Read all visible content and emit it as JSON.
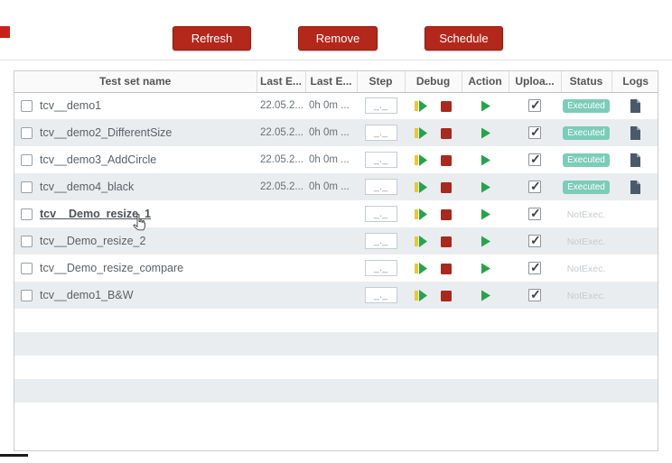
{
  "toolbar": {
    "buttons": [
      {
        "label": "Refresh"
      },
      {
        "label": "Remove"
      },
      {
        "label": "Schedule"
      }
    ]
  },
  "colors": {
    "button_red": "#b4271b",
    "badge_teal": "#7bccb9",
    "play_green": "#28a24c",
    "stop_red": "#a8291e",
    "debug_yellow": "#e5c93c",
    "log_icon_slate": "#4a5a6a",
    "row_stripe": "#e9edf0"
  },
  "icons": [
    "debug-play-icon",
    "stop-icon",
    "play-icon",
    "log-document-icon",
    "checkbox",
    "hand-cursor-icon"
  ],
  "table": {
    "headers": [
      "Test set name",
      "Last E...",
      "Last E...",
      "Step",
      "Debug",
      "Action",
      "Uploa...",
      "Status",
      "Logs"
    ],
    "step_placeholder": "_._",
    "empty_rows": 4,
    "rows": [
      {
        "name": "tcv__demo1",
        "last_exec": "22.05.2...",
        "duration": "0h 0m ...",
        "status": "Executed",
        "executed": true,
        "has_log": true,
        "upload_checked": true,
        "row_checked": false,
        "hover": false
      },
      {
        "name": "tcv__demo2_DifferentSize",
        "last_exec": "22.05.2...",
        "duration": "0h 0m ...",
        "status": "Executed",
        "executed": true,
        "has_log": true,
        "upload_checked": true,
        "row_checked": false,
        "hover": false
      },
      {
        "name": "tcv__demo3_AddCircle",
        "last_exec": "22.05.2...",
        "duration": "0h 0m ...",
        "status": "Executed",
        "executed": true,
        "has_log": true,
        "upload_checked": true,
        "row_checked": false,
        "hover": false
      },
      {
        "name": "tcv__demo4_black",
        "last_exec": "22.05.2...",
        "duration": "0h 0m ...",
        "status": "Executed",
        "executed": true,
        "has_log": true,
        "upload_checked": true,
        "row_checked": false,
        "hover": false
      },
      {
        "name": "tcv__Demo_resize_1",
        "last_exec": "",
        "duration": "",
        "status": "NotExec.",
        "executed": false,
        "has_log": false,
        "upload_checked": true,
        "row_checked": false,
        "hover": true
      },
      {
        "name": "tcv__Demo_resize_2",
        "last_exec": "",
        "duration": "",
        "status": "NotExec.",
        "executed": false,
        "has_log": false,
        "upload_checked": true,
        "row_checked": false,
        "hover": false
      },
      {
        "name": "tcv__Demo_resize_compare",
        "last_exec": "",
        "duration": "",
        "status": "NotExec.",
        "executed": false,
        "has_log": false,
        "upload_checked": true,
        "row_checked": false,
        "hover": false
      },
      {
        "name": "tcv__demo1_B&W",
        "last_exec": "",
        "duration": "",
        "status": "NotExec.",
        "executed": false,
        "has_log": false,
        "upload_checked": true,
        "row_checked": false,
        "hover": false
      }
    ]
  }
}
